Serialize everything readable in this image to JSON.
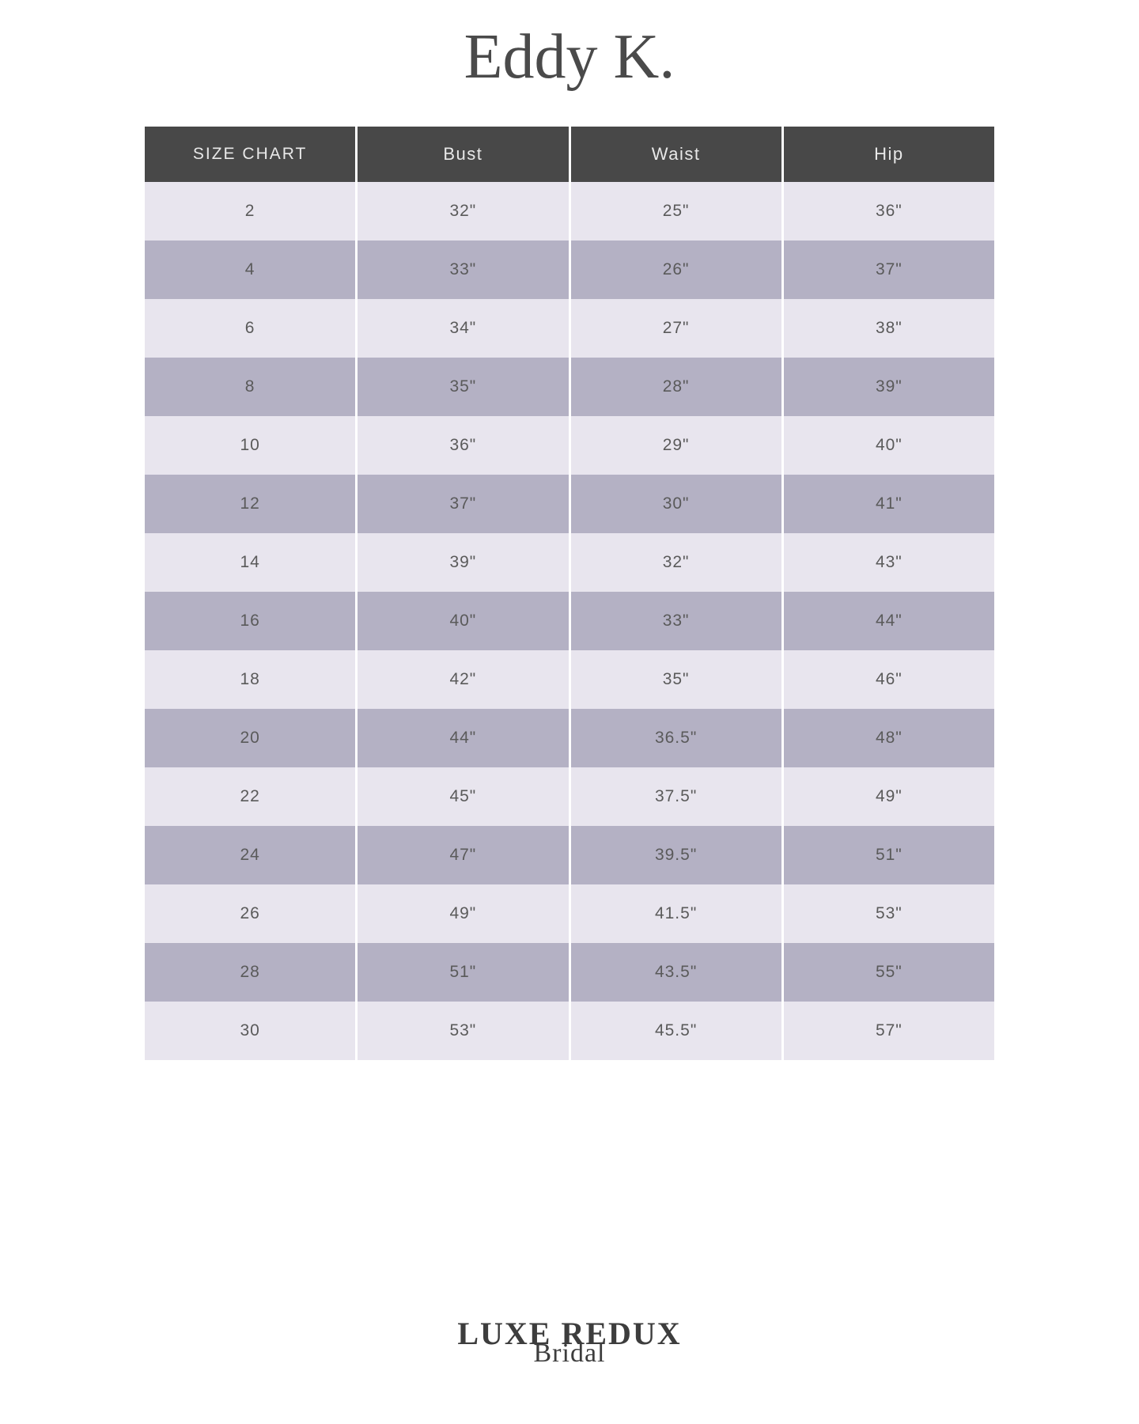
{
  "brand": {
    "title": "Eddy K."
  },
  "table": {
    "type": "table",
    "header_bg": "#484848",
    "header_text_color": "#e8e8e8",
    "row_odd_bg": "#e8e5ee",
    "row_even_bg": "#b4b1c4",
    "cell_text_color": "#5a5a5a",
    "col_width_pct": 25,
    "header_fontsize": 22,
    "cell_fontsize": 21,
    "columns": [
      "SIZE CHART",
      "Bust",
      "Waist",
      "Hip"
    ],
    "rows": [
      [
        "2",
        "32\"",
        "25\"",
        "36\""
      ],
      [
        "4",
        "33\"",
        "26\"",
        "37\""
      ],
      [
        "6",
        "34\"",
        "27\"",
        "38\""
      ],
      [
        "8",
        "35\"",
        "28\"",
        "39\""
      ],
      [
        "10",
        "36\"",
        "29\"",
        "40\""
      ],
      [
        "12",
        "37\"",
        "30\"",
        "41\""
      ],
      [
        "14",
        "39\"",
        "32\"",
        "43\""
      ],
      [
        "16",
        "40\"",
        "33\"",
        "44\""
      ],
      [
        "18",
        "42\"",
        "35\"",
        "46\""
      ],
      [
        "20",
        "44\"",
        "36.5\"",
        "48\""
      ],
      [
        "22",
        "45\"",
        "37.5\"",
        "49\""
      ],
      [
        "24",
        "47\"",
        "39.5\"",
        "51\""
      ],
      [
        "26",
        "49\"",
        "41.5\"",
        "53\""
      ],
      [
        "28",
        "51\"",
        "43.5\"",
        "55\""
      ],
      [
        "30",
        "53\"",
        "45.5\"",
        "57\""
      ]
    ]
  },
  "footer": {
    "line1": "LUXE REDUX",
    "line2": "Bridal"
  }
}
